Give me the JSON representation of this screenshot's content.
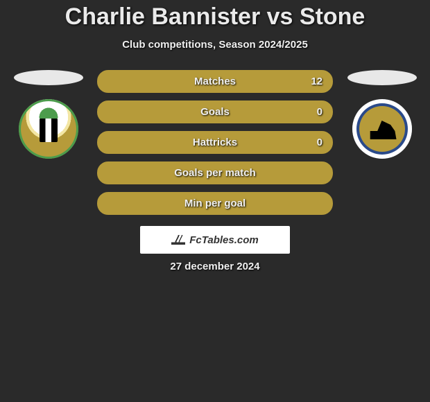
{
  "header": {
    "title": "Charlie Bannister vs Stone",
    "subtitle": "Club competitions, Season 2024/2025"
  },
  "left_side": {
    "ellipse_color": "#e8e8e8",
    "crest_name": "solihull-moors-crest"
  },
  "right_side": {
    "ellipse_color": "#e8e8e8",
    "crest_name": "boston-united-crest"
  },
  "stats": [
    {
      "label": "Matches",
      "right_value": "12"
    },
    {
      "label": "Goals",
      "right_value": "0"
    },
    {
      "label": "Hattricks",
      "right_value": "0"
    },
    {
      "label": "Goals per match",
      "right_value": ""
    },
    {
      "label": "Min per goal",
      "right_value": ""
    }
  ],
  "styling": {
    "pill_background": "#b69b3a",
    "pill_border": "#b69b3a",
    "pill_height": 33,
    "pill_radius": 16,
    "label_fontsize": 15,
    "label_color": "#f0f0f0",
    "page_background": "#2a2a2a",
    "title_fontsize": 34,
    "title_color": "#eaeaea",
    "subtitle_fontsize": 15
  },
  "brand": {
    "text": "FcTables.com",
    "box_background": "#ffffff",
    "text_color": "#333333"
  },
  "footer": {
    "date": "27 december 2024"
  }
}
